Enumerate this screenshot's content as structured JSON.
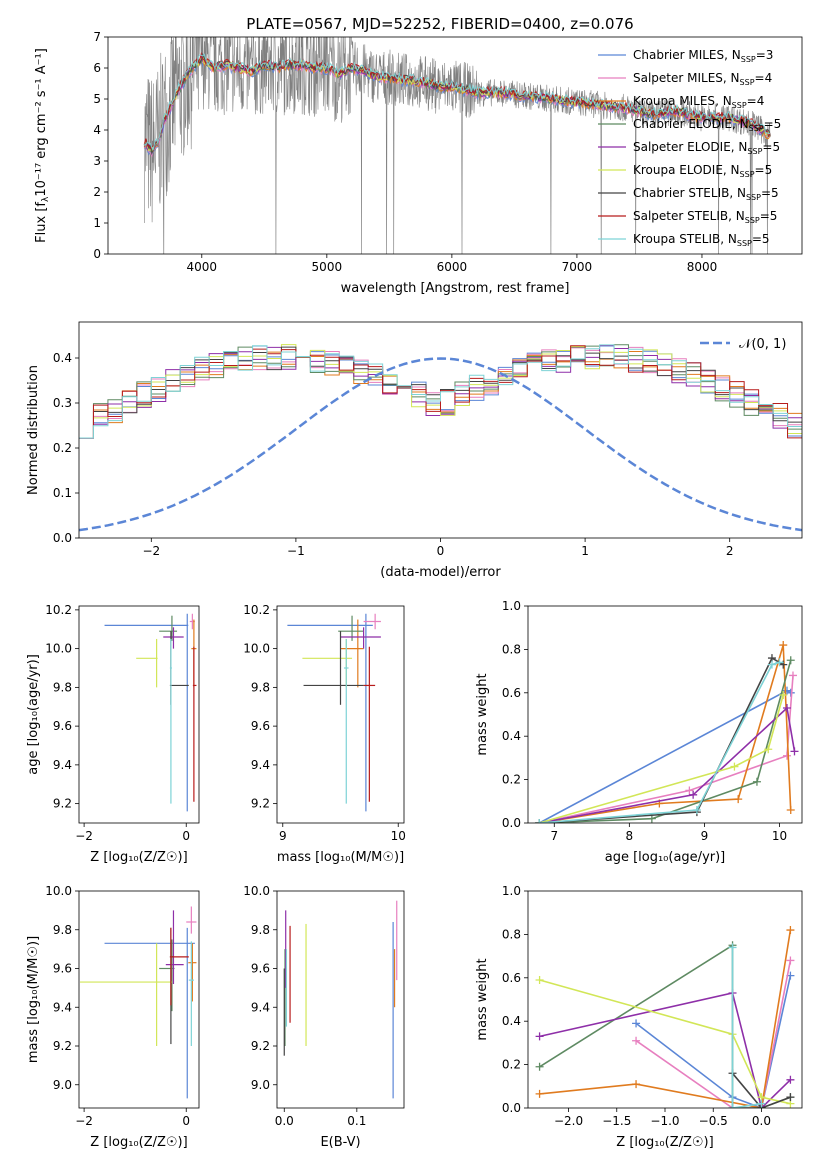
{
  "figure": {
    "title": "PLATE=0567, MJD=52252, FIBERID=0400, z=0.076"
  },
  "series": [
    {
      "label": "Chabrier MILES",
      "nssp": "3",
      "color": "#5b86d6"
    },
    {
      "label": "Salpeter MILES",
      "nssp": "4",
      "color": "#e77fbf"
    },
    {
      "label": "Kroupa MILES",
      "nssp": "4",
      "color": "#e07b1f"
    },
    {
      "label": "Chabrier ELODIE",
      "nssp": "5",
      "color": "#5e8a62"
    },
    {
      "label": "Salpeter ELODIE",
      "nssp": "5",
      "color": "#8e2fa8"
    },
    {
      "label": "Kroupa ELODIE",
      "nssp": "5",
      "color": "#d2e657"
    },
    {
      "label": "Chabrier STELIB",
      "nssp": "5",
      "color": "#444444"
    },
    {
      "label": "Salpeter STELIB",
      "nssp": "5",
      "color": "#b71c1c"
    },
    {
      "label": "Kroupa STELIB",
      "nssp": "5",
      "color": "#7ed3d6"
    }
  ],
  "chart_data": [
    {
      "id": "spectrum",
      "type": "line",
      "xlabel": "wavelength [Angstrom, rest frame]",
      "ylabel_main": "Flux [f",
      "ylabel_sub": "λ",
      "ylabel_rest": "10⁻¹⁷ erg cm⁻² s⁻¹ A⁻¹]",
      "xlim": [
        3250,
        8800
      ],
      "ylim": [
        0,
        7
      ],
      "xticks": [
        "4000",
        "5000",
        "6000",
        "7000",
        "8000"
      ],
      "xtick_values": [
        4000,
        5000,
        6000,
        7000,
        8000
      ],
      "yticks": [
        "0",
        "1",
        "2",
        "3",
        "4",
        "5",
        "6",
        "7"
      ],
      "ytick_values": [
        0,
        1,
        2,
        3,
        4,
        5,
        6,
        7
      ],
      "data_color": "#808080",
      "model_x": [
        3540,
        3600,
        3650,
        3700,
        3800,
        3900,
        4000,
        4100,
        4200,
        4300,
        4400,
        4500,
        4600,
        4700,
        4800,
        4900,
        5000,
        5100,
        5200,
        5300,
        5400,
        5500,
        5600,
        5700,
        5800,
        5900,
        6000,
        6200,
        6400,
        6600,
        6800,
        7000,
        7200,
        7400,
        7600,
        7800,
        8000,
        8200,
        8400,
        8550
      ],
      "model_y": [
        3.6,
        3.3,
        3.6,
        4.3,
        5.2,
        5.9,
        6.3,
        6.0,
        6.1,
        6.0,
        5.9,
        6.1,
        6.0,
        6.1,
        6.1,
        6.0,
        6.0,
        5.8,
        6.0,
        5.9,
        5.7,
        5.7,
        5.6,
        5.6,
        5.5,
        5.4,
        5.4,
        5.2,
        5.2,
        5.1,
        5.0,
        4.9,
        4.8,
        4.7,
        4.5,
        4.6,
        4.4,
        4.4,
        4.2,
        3.8
      ]
    },
    {
      "id": "residuals",
      "type": "histogram",
      "xlabel": "(data-model)/error",
      "ylabel": "Normed distribution",
      "xlim": [
        -2.5,
        2.5
      ],
      "ylim": [
        0,
        0.48
      ],
      "xticks": [
        "−2",
        "−1",
        "0",
        "1",
        "2"
      ],
      "xtick_values": [
        -2,
        -1,
        0,
        1,
        2
      ],
      "yticks": [
        "0.0",
        "0.1",
        "0.2",
        "0.3",
        "0.4"
      ],
      "ytick_values": [
        0,
        0.1,
        0.2,
        0.3,
        0.4
      ],
      "legend": "𝒩(0, 1)",
      "normal_color": "#5b86d6",
      "bin_width": 0.1,
      "bin_start": -2.5,
      "base_values": [
        0.018,
        0.022,
        0.028,
        0.032,
        0.036,
        0.041,
        0.047,
        0.054,
        0.062,
        0.071,
        0.08,
        0.09,
        0.101,
        0.113,
        0.126,
        0.14,
        0.154,
        0.169,
        0.185,
        0.201,
        0.218,
        0.235,
        0.252,
        0.269,
        0.286,
        0.302,
        0.318,
        0.333,
        0.347,
        0.36,
        0.372,
        0.382,
        0.39,
        0.397,
        0.401,
        0.403,
        0.403,
        0.401,
        0.397,
        0.391,
        0.382,
        0.372,
        0.36,
        0.347,
        0.333,
        0.318,
        0.302,
        0.286,
        0.269,
        0.252
      ]
    },
    {
      "id": "age-vs-Z",
      "type": "errorbar",
      "xlabel": "Z [log₁₀(Z/Z☉)]",
      "ylabel": "age  [log₁₀(age/yr)]",
      "xlim": [
        -2.1,
        0.25
      ],
      "ylim": [
        9.1,
        10.22
      ],
      "xticks": [
        "−2",
        "0"
      ],
      "xtick_values": [
        -2,
        0
      ],
      "yticks": [
        "9.2",
        "9.4",
        "9.6",
        "9.8",
        "10.0",
        "10.2"
      ],
      "ytick_values": [
        9.2,
        9.4,
        9.6,
        9.8,
        10.0,
        10.2
      ],
      "points": [
        {
          "x": 0.02,
          "y": 10.12,
          "xerr": [
            1.62,
            0.02
          ],
          "yerr": [
            0.96,
            0.06
          ],
          "c": 0
        },
        {
          "x": 0.12,
          "y": 10.14,
          "xerr": [
            0.05,
            0.05
          ],
          "yerr": [
            0.04,
            0.04
          ],
          "c": 1
        },
        {
          "x": 0.15,
          "y": 10.0,
          "xerr": [
            0.05,
            0.05
          ],
          "yerr": [
            0.2,
            0.15
          ],
          "c": 2
        },
        {
          "x": -0.28,
          "y": 10.09,
          "xerr": [
            0.25,
            0.1
          ],
          "yerr": [
            0.05,
            0.08
          ],
          "c": 3
        },
        {
          "x": -0.25,
          "y": 10.06,
          "xerr": [
            0.2,
            0.2
          ],
          "yerr": [
            0.06,
            0.05
          ],
          "c": 4
        },
        {
          "x": -0.58,
          "y": 9.95,
          "xerr": [
            0.4,
            0.02
          ],
          "yerr": [
            0.15,
            0.1
          ],
          "c": 5
        },
        {
          "x": -0.3,
          "y": 9.81,
          "xerr": [
            0.02,
            0.35
          ],
          "yerr": [
            0.1,
            0.28
          ],
          "c": 6
        },
        {
          "x": 0.15,
          "y": 9.81,
          "xerr": [
            0.02,
            0.05
          ],
          "yerr": [
            0.6,
            0.2
          ],
          "c": 7
        },
        {
          "x": -0.3,
          "y": 9.9,
          "xerr": [
            0.02,
            0.02
          ],
          "yerr": [
            0.7,
            0.15
          ],
          "c": 8
        }
      ]
    },
    {
      "id": "age-vs-mass",
      "type": "errorbar",
      "xlabel": "mass [log₁₀(M/M☉)]",
      "ylabel": "",
      "xlim": [
        8.95,
        10.05
      ],
      "ylim": [
        9.1,
        10.22
      ],
      "xticks": [
        "9",
        "10"
      ],
      "xtick_values": [
        9,
        10
      ],
      "yticks": [
        "9.2",
        "9.4",
        "9.6",
        "9.8",
        "10.0",
        "10.2"
      ],
      "ytick_values": [
        9.2,
        9.4,
        9.6,
        9.8,
        10.0,
        10.2
      ],
      "points": [
        {
          "x": 9.72,
          "y": 10.12,
          "xerr": [
            0.68,
            0.06
          ],
          "yerr": [
            0.96,
            0.06
          ],
          "c": 0
        },
        {
          "x": 9.8,
          "y": 10.14,
          "xerr": [
            0.1,
            0.05
          ],
          "yerr": [
            0.04,
            0.04
          ],
          "c": 1
        },
        {
          "x": 9.65,
          "y": 10.0,
          "xerr": [
            0.15,
            0.05
          ],
          "yerr": [
            0.2,
            0.15
          ],
          "c": 2
        },
        {
          "x": 9.6,
          "y": 10.09,
          "xerr": [
            0.12,
            0.1
          ],
          "yerr": [
            0.05,
            0.08
          ],
          "c": 3
        },
        {
          "x": 9.7,
          "y": 10.06,
          "xerr": [
            0.2,
            0.15
          ],
          "yerr": [
            0.06,
            0.05
          ],
          "c": 4
        },
        {
          "x": 9.55,
          "y": 9.95,
          "xerr": [
            0.38,
            0.05
          ],
          "yerr": [
            0.15,
            0.1
          ],
          "c": 5
        },
        {
          "x": 9.5,
          "y": 9.81,
          "xerr": [
            0.32,
            0.2
          ],
          "yerr": [
            0.1,
            0.28
          ],
          "c": 6
        },
        {
          "x": 9.75,
          "y": 9.81,
          "xerr": [
            0.05,
            0.05
          ],
          "yerr": [
            0.6,
            0.2
          ],
          "c": 7
        },
        {
          "x": 9.55,
          "y": 9.9,
          "xerr": [
            0.02,
            0.02
          ],
          "yerr": [
            0.7,
            0.15
          ],
          "c": 8
        }
      ]
    },
    {
      "id": "weight-vs-age",
      "type": "line",
      "xlabel": "age  [log₁₀(age/yr)]",
      "ylabel": "mass weight",
      "xlim": [
        6.65,
        10.3
      ],
      "ylim": [
        0,
        1.0
      ],
      "xticks": [
        "7",
        "8",
        "9",
        "10"
      ],
      "xtick_values": [
        7,
        8,
        9,
        10
      ],
      "yticks": [
        "0.0",
        "0.2",
        "0.4",
        "0.6",
        "0.8",
        "1.0"
      ],
      "ytick_values": [
        0,
        0.2,
        0.4,
        0.6,
        0.8,
        1.0
      ],
      "series": [
        {
          "c": 0,
          "x": [
            6.8,
            10.1,
            10.15
          ],
          "y": [
            0.0,
            0.61,
            0.6
          ]
        },
        {
          "c": 1,
          "x": [
            6.8,
            8.8,
            10.1,
            10.18
          ],
          "y": [
            0.0,
            0.15,
            0.31,
            0.68
          ]
        },
        {
          "c": 2,
          "x": [
            6.8,
            8.4,
            9.45,
            10.05,
            10.15
          ],
          "y": [
            0.0,
            0.09,
            0.11,
            0.82,
            0.06
          ]
        },
        {
          "c": 3,
          "x": [
            6.8,
            8.3,
            9.7,
            10.15
          ],
          "y": [
            0.0,
            0.02,
            0.19,
            0.75
          ]
        },
        {
          "c": 4,
          "x": [
            6.8,
            8.85,
            10.1,
            10.2
          ],
          "y": [
            0.0,
            0.13,
            0.53,
            0.33
          ]
        },
        {
          "c": 5,
          "x": [
            6.8,
            9.4,
            9.85,
            10.05
          ],
          "y": [
            0.0,
            0.26,
            0.34,
            0.59
          ]
        },
        {
          "c": 6,
          "x": [
            6.8,
            8.9,
            9.9,
            10.05
          ],
          "y": [
            0.0,
            0.05,
            0.76,
            0.73
          ]
        },
        {
          "c": 8,
          "x": [
            6.8,
            8.9,
            9.9,
            10.0
          ],
          "y": [
            0.0,
            0.06,
            0.73,
            0.74
          ]
        }
      ]
    },
    {
      "id": "mass-vs-Z",
      "type": "errorbar",
      "xlabel": "Z [log₁₀(Z/Z☉)]",
      "ylabel": "mass [log₁₀(M/M☉)]",
      "xlim": [
        -2.1,
        0.25
      ],
      "ylim": [
        8.88,
        10.0
      ],
      "xticks": [
        "−2",
        "0"
      ],
      "xtick_values": [
        -2,
        0
      ],
      "yticks": [
        "9.0",
        "9.2",
        "9.4",
        "9.6",
        "9.8",
        "10.0"
      ],
      "ytick_values": [
        9.0,
        9.2,
        9.4,
        9.6,
        9.8,
        10.0
      ],
      "points": [
        {
          "x": 0.02,
          "y": 9.73,
          "xerr": [
            1.62,
            0.15
          ],
          "yerr": [
            0.8,
            0.08
          ],
          "c": 0
        },
        {
          "x": 0.1,
          "y": 9.84,
          "xerr": [
            0.1,
            0.1
          ],
          "yerr": [
            0.06,
            0.08
          ],
          "c": 1
        },
        {
          "x": 0.12,
          "y": 9.63,
          "xerr": [
            0.08,
            0.08
          ],
          "yerr": [
            0.2,
            0.1
          ],
          "c": 2
        },
        {
          "x": -0.28,
          "y": 9.6,
          "xerr": [
            0.25,
            0.05
          ],
          "yerr": [
            0.22,
            0.15
          ],
          "c": 3
        },
        {
          "x": -0.25,
          "y": 9.62,
          "xerr": [
            0.15,
            0.2
          ],
          "yerr": [
            0.1,
            0.28
          ],
          "c": 4
        },
        {
          "x": -0.58,
          "y": 9.53,
          "xerr": [
            1.5,
            0.3
          ],
          "yerr": [
            0.33,
            0.2
          ],
          "c": 5
        },
        {
          "x": -0.3,
          "y": 9.66,
          "xerr": [
            0.02,
            0.05
          ],
          "yerr": [
            0.45,
            0.15
          ],
          "c": 6
        },
        {
          "x": -0.3,
          "y": 9.66,
          "xerr": [
            0.02,
            0.35
          ],
          "yerr": [
            0.25,
            0.15
          ],
          "c": 7
        },
        {
          "x": 0.1,
          "y": 9.54,
          "xerr": [
            0.05,
            0.05
          ],
          "yerr": [
            0.34,
            0.2
          ],
          "c": 8
        }
      ]
    },
    {
      "id": "mass-vs-ebv",
      "type": "errorbar",
      "xlabel": "E(B-V)",
      "ylabel": "",
      "xlim": [
        -0.01,
        0.165
      ],
      "ylim": [
        8.88,
        10.0
      ],
      "xticks": [
        "0.0",
        "0.1"
      ],
      "xtick_values": [
        0.0,
        0.1
      ],
      "yticks": [
        "9.0",
        "9.2",
        "9.4",
        "9.6",
        "9.8",
        "10.0"
      ],
      "ytick_values": [
        9.0,
        9.2,
        9.4,
        9.6,
        9.8,
        10.0
      ],
      "points": [
        {
          "x": 0.15,
          "y": 9.73,
          "xerr": [
            0.0,
            0.0
          ],
          "yerr": [
            0.8,
            0.11
          ],
          "c": 0
        },
        {
          "x": 0.155,
          "y": 9.84,
          "xerr": [
            0.0,
            0.0
          ],
          "yerr": [
            0.3,
            0.11
          ],
          "c": 1
        },
        {
          "x": 0.152,
          "y": 9.6,
          "xerr": [
            0.0,
            0.0
          ],
          "yerr": [
            0.2,
            0.1
          ],
          "c": 2
        },
        {
          "x": 0.001,
          "y": 9.5,
          "xerr": [
            0.0,
            0.0
          ],
          "yerr": [
            0.3,
            0.2
          ],
          "c": 3
        },
        {
          "x": 0.002,
          "y": 9.7,
          "xerr": [
            0.0,
            0.0
          ],
          "yerr": [
            0.2,
            0.2
          ],
          "c": 4
        },
        {
          "x": 0.03,
          "y": 9.5,
          "xerr": [
            0.0,
            0.0
          ],
          "yerr": [
            0.3,
            0.33
          ],
          "c": 5
        },
        {
          "x": 0.0,
          "y": 9.4,
          "xerr": [
            0.0,
            0.0
          ],
          "yerr": [
            0.25,
            0.2
          ],
          "c": 6
        },
        {
          "x": 0.008,
          "y": 9.6,
          "xerr": [
            0.0,
            0.0
          ],
          "yerr": [
            0.28,
            0.22
          ],
          "c": 7
        },
        {
          "x": 0.003,
          "y": 9.5,
          "xerr": [
            0.0,
            0.0
          ],
          "yerr": [
            0.2,
            0.2
          ],
          "c": 8
        }
      ]
    },
    {
      "id": "weight-vs-Z",
      "type": "line",
      "xlabel": "Z [log₁₀(Z/Z☉)]",
      "ylabel": "mass weight",
      "xlim": [
        -2.42,
        0.42
      ],
      "ylim": [
        0,
        1.0
      ],
      "xticks": [
        "−2.0",
        "−1.5",
        "−1.0",
        "−0.5",
        "0.0"
      ],
      "xtick_values": [
        -2.0,
        -1.5,
        -1.0,
        -0.5,
        0.0
      ],
      "yticks": [
        "0.0",
        "0.2",
        "0.4",
        "0.6",
        "0.8",
        "1.0"
      ],
      "ytick_values": [
        0,
        0.2,
        0.4,
        0.6,
        0.8,
        1.0
      ],
      "series": [
        {
          "c": 0,
          "x": [
            -1.3,
            -0.3,
            0.0,
            0.3
          ],
          "y": [
            0.39,
            0.05,
            0.0,
            0.61
          ]
        },
        {
          "c": 1,
          "x": [
            -1.3,
            -0.3,
            0.0,
            0.3
          ],
          "y": [
            0.31,
            0.0,
            0.0,
            0.68
          ]
        },
        {
          "c": 2,
          "x": [
            -2.3,
            -1.3,
            0.0,
            0.3
          ],
          "y": [
            0.065,
            0.11,
            0.0,
            0.82
          ]
        },
        {
          "c": 3,
          "x": [
            -2.3,
            -0.3,
            -0.3,
            0.0,
            0.3
          ],
          "y": [
            0.19,
            0.75,
            0.0,
            0.0,
            0.05
          ]
        },
        {
          "c": 4,
          "x": [
            -2.3,
            -0.3,
            0.0,
            0.3
          ],
          "y": [
            0.33,
            0.53,
            0.0,
            0.13
          ]
        },
        {
          "c": 5,
          "x": [
            -2.3,
            -0.3,
            0.0,
            0.3
          ],
          "y": [
            0.59,
            0.34,
            0.05,
            0.02
          ]
        },
        {
          "c": 6,
          "x": [
            -0.3,
            0.0,
            0.3
          ],
          "y": [
            0.16,
            0.0,
            0.05
          ]
        },
        {
          "c": 8,
          "x": [
            -0.3,
            -0.3,
            0.0
          ],
          "y": [
            0.74,
            0.0,
            0.02
          ]
        }
      ]
    }
  ]
}
